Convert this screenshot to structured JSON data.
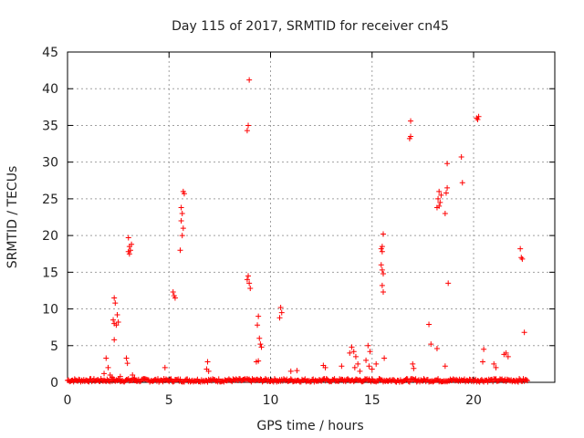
{
  "chart_data": {
    "type": "scatter",
    "title": "Day 115 of 2017, SRMTID for receiver cn45",
    "xlabel": "GPS time / hours",
    "ylabel": "SRMTID / TECUs",
    "xlim": [
      0,
      24
    ],
    "ylim": [
      0,
      45
    ],
    "xticks": [
      0,
      5,
      10,
      15,
      20
    ],
    "yticks": [
      0,
      5,
      10,
      15,
      20,
      25,
      30,
      35,
      40,
      45
    ],
    "grid": true,
    "marker": "+",
    "series": [
      {
        "name": "SRMTID",
        "color": "#ff0000",
        "points": [
          [
            8.95,
            41.2
          ],
          [
            8.85,
            34.3
          ],
          [
            8.9,
            35.0
          ],
          [
            8.9,
            14.5
          ],
          [
            8.95,
            13.5
          ],
          [
            9.0,
            12.8
          ],
          [
            8.85,
            14.0
          ],
          [
            3.0,
            19.7
          ],
          [
            3.05,
            18.5
          ],
          [
            3.1,
            18.0
          ],
          [
            3.05,
            17.5
          ],
          [
            3.15,
            18.8
          ],
          [
            3.0,
            17.8
          ],
          [
            2.3,
            11.5
          ],
          [
            2.35,
            10.8
          ],
          [
            2.25,
            8.5
          ],
          [
            2.3,
            8.0
          ],
          [
            2.4,
            7.8
          ],
          [
            2.45,
            9.2
          ],
          [
            2.3,
            5.8
          ],
          [
            2.5,
            8.2
          ],
          [
            5.2,
            12.3
          ],
          [
            5.25,
            11.8
          ],
          [
            5.3,
            11.5
          ],
          [
            5.6,
            23.8
          ],
          [
            5.65,
            23.0
          ],
          [
            5.6,
            22.0
          ],
          [
            5.7,
            21.0
          ],
          [
            5.65,
            20.0
          ],
          [
            5.55,
            18.0
          ],
          [
            5.7,
            26.0
          ],
          [
            5.75,
            25.7
          ],
          [
            9.4,
            9.0
          ],
          [
            9.35,
            7.8
          ],
          [
            9.45,
            6.0
          ],
          [
            9.5,
            5.2
          ],
          [
            9.55,
            4.8
          ],
          [
            9.4,
            2.9
          ],
          [
            9.3,
            2.8
          ],
          [
            10.5,
            10.2
          ],
          [
            10.55,
            9.5
          ],
          [
            10.45,
            8.8
          ],
          [
            15.55,
            20.2
          ],
          [
            15.45,
            18.2
          ],
          [
            15.5,
            18.5
          ],
          [
            15.5,
            17.8
          ],
          [
            15.45,
            16.0
          ],
          [
            15.5,
            15.3
          ],
          [
            15.55,
            14.8
          ],
          [
            15.5,
            13.2
          ],
          [
            15.55,
            12.3
          ],
          [
            16.9,
            35.6
          ],
          [
            16.85,
            33.2
          ],
          [
            16.9,
            33.5
          ],
          [
            18.3,
            26.0
          ],
          [
            18.25,
            25.0
          ],
          [
            18.35,
            24.5
          ],
          [
            18.3,
            24.0
          ],
          [
            18.2,
            23.8
          ],
          [
            18.4,
            25.5
          ],
          [
            18.7,
            26.5
          ],
          [
            18.65,
            25.8
          ],
          [
            18.6,
            23.0
          ],
          [
            18.7,
            29.8
          ],
          [
            19.4,
            30.7
          ],
          [
            19.45,
            27.2
          ],
          [
            18.75,
            13.5
          ],
          [
            20.15,
            36.0
          ],
          [
            20.2,
            35.8
          ],
          [
            20.25,
            36.2
          ],
          [
            22.3,
            18.2
          ],
          [
            22.35,
            17.0
          ],
          [
            22.4,
            16.8
          ],
          [
            22.5,
            6.8
          ],
          [
            17.8,
            7.9
          ],
          [
            17.9,
            5.2
          ],
          [
            18.2,
            4.6
          ],
          [
            18.6,
            2.2
          ],
          [
            17.0,
            2.5
          ],
          [
            17.05,
            1.9
          ],
          [
            14.0,
            4.8
          ],
          [
            14.1,
            4.2
          ],
          [
            14.2,
            3.5
          ],
          [
            14.3,
            2.5
          ],
          [
            14.15,
            2.0
          ],
          [
            14.4,
            1.5
          ],
          [
            13.9,
            4.0
          ],
          [
            14.8,
            5.0
          ],
          [
            14.9,
            4.2
          ],
          [
            14.7,
            3.0
          ],
          [
            14.85,
            2.2
          ],
          [
            15.0,
            1.8
          ],
          [
            15.2,
            2.5
          ],
          [
            15.6,
            3.3
          ],
          [
            20.5,
            4.5
          ],
          [
            20.45,
            2.8
          ],
          [
            21.0,
            2.5
          ],
          [
            21.1,
            2.0
          ],
          [
            21.5,
            3.8
          ],
          [
            21.6,
            4.0
          ],
          [
            21.7,
            3.5
          ],
          [
            6.9,
            2.8
          ],
          [
            6.85,
            1.8
          ],
          [
            6.95,
            1.5
          ],
          [
            4.8,
            2.0
          ],
          [
            2.9,
            3.3
          ],
          [
            2.95,
            2.6
          ],
          [
            1.9,
            3.3
          ],
          [
            2.0,
            2.0
          ],
          [
            11.0,
            1.5
          ],
          [
            11.3,
            1.6
          ],
          [
            12.6,
            2.3
          ],
          [
            12.7,
            2.0
          ],
          [
            13.5,
            2.2
          ],
          [
            1.8,
            1.2
          ],
          [
            2.1,
            1.0
          ],
          [
            2.2,
            0.7
          ],
          [
            2.6,
            0.8
          ],
          [
            3.2,
            1.0
          ],
          [
            3.3,
            0.6
          ]
        ]
      }
    ]
  }
}
